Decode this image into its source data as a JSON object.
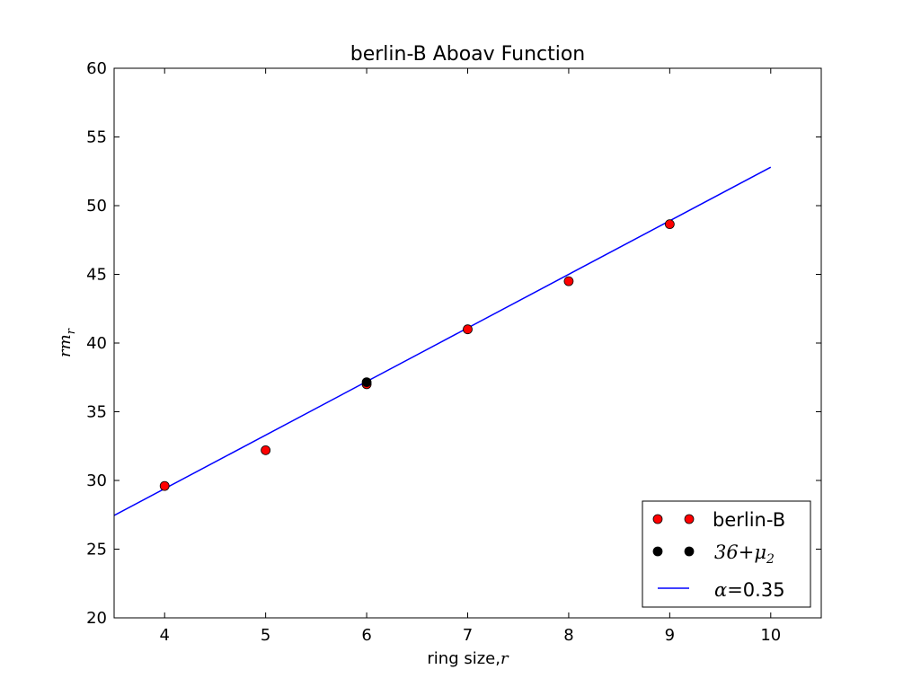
{
  "chart_data": {
    "type": "scatter",
    "title": "berlin-B Aboav Function",
    "xlabel": {
      "text": "ring size,",
      "var": "r"
    },
    "ylabel": {
      "base": "rm",
      "sub": "r"
    },
    "xlim": [
      3.5,
      10.5
    ],
    "ylim": [
      20,
      60
    ],
    "xticks": [
      4,
      5,
      6,
      7,
      8,
      9,
      10
    ],
    "yticks": [
      20,
      25,
      30,
      35,
      40,
      45,
      50,
      55,
      60
    ],
    "grid": false,
    "legend_position": "lower-right",
    "series": [
      {
        "name": "berlin-B",
        "kind": "markers",
        "color": "#ff0000",
        "points": [
          {
            "x": 4,
            "y": 29.6
          },
          {
            "x": 5,
            "y": 32.2
          },
          {
            "x": 6,
            "y": 37.0
          },
          {
            "x": 7,
            "y": 41.0
          },
          {
            "x": 8,
            "y": 44.5
          },
          {
            "x": 9,
            "y": 48.65
          }
        ]
      },
      {
        "name": "36+μ2",
        "legend_math": {
          "lead": "36+",
          "sym": "μ",
          "sub": "2"
        },
        "kind": "markers",
        "color": "#000000",
        "points": [
          {
            "x": 6,
            "y": 37.15
          }
        ]
      },
      {
        "name": "α=0.35",
        "legend_math": {
          "lead": "α",
          "rest": "=",
          "value": "0.35"
        },
        "kind": "line",
        "color": "#0000ff",
        "points": [
          {
            "x": 3.5,
            "y": 27.45
          },
          {
            "x": 10,
            "y": 52.8
          }
        ]
      }
    ]
  }
}
